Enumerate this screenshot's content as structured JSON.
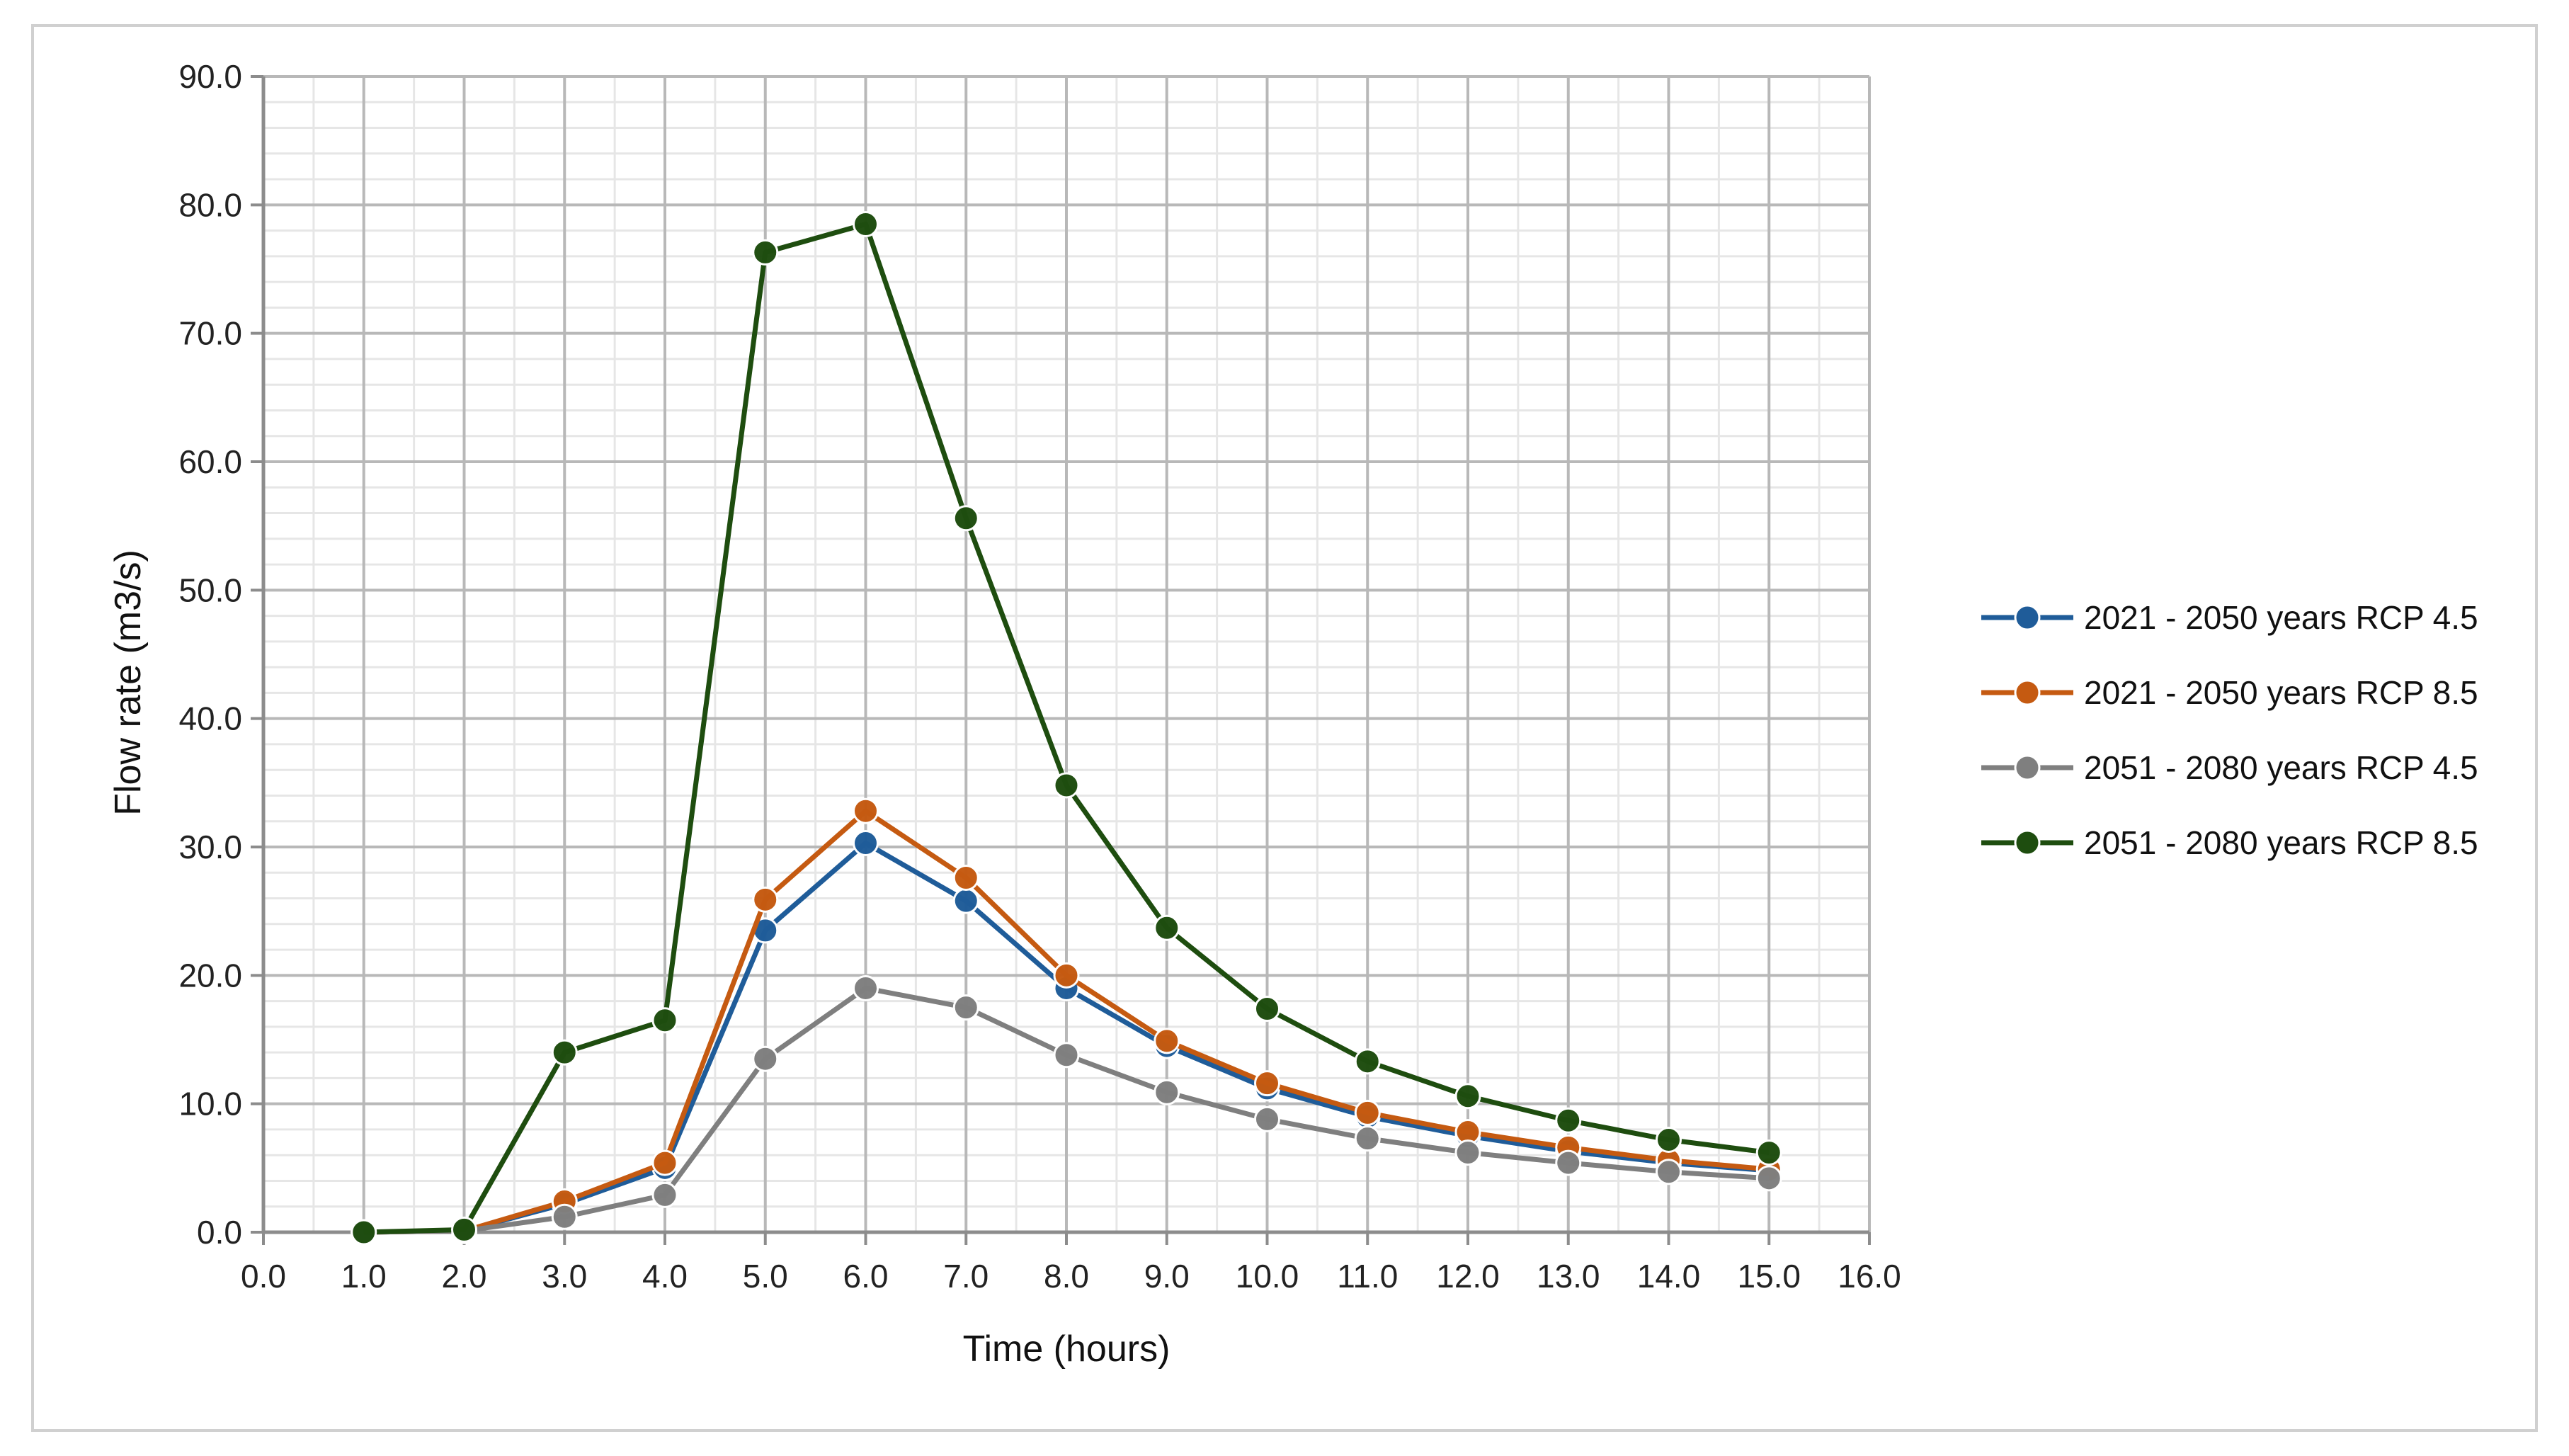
{
  "chart_data": {
    "type": "line",
    "title": "",
    "xlabel": "Time (hours)",
    "ylabel": "Flow rate (m3/s)",
    "xlim": [
      0,
      16
    ],
    "ylim": [
      0,
      90
    ],
    "x_ticks": [
      "0.0",
      "1.0",
      "2.0",
      "3.0",
      "4.0",
      "5.0",
      "6.0",
      "7.0",
      "8.0",
      "9.0",
      "10.0",
      "11.0",
      "12.0",
      "13.0",
      "14.0",
      "15.0",
      "16.0"
    ],
    "y_ticks": [
      "0.0",
      "10.0",
      "20.0",
      "30.0",
      "40.0",
      "50.0",
      "60.0",
      "70.0",
      "80.0",
      "90.0"
    ],
    "grid": true,
    "minor_grid": true,
    "legend_position": "right",
    "x": [
      1,
      2,
      3,
      4,
      5,
      6,
      7,
      8,
      9,
      10,
      11,
      12,
      13,
      14,
      15
    ],
    "series": [
      {
        "name": "2021 - 2050 years RCP 4.5",
        "color": "#1f5c99",
        "values": [
          0,
          0.1,
          2.2,
          5.0,
          23.5,
          30.3,
          25.8,
          19.0,
          14.5,
          11.2,
          9.0,
          7.5,
          6.3,
          5.4,
          4.8
        ]
      },
      {
        "name": "2021 - 2050 years RCP 8.5",
        "color": "#c55a11",
        "values": [
          0,
          0.1,
          2.4,
          5.4,
          25.9,
          32.8,
          27.6,
          20.0,
          14.9,
          11.6,
          9.3,
          7.8,
          6.6,
          5.6,
          4.9
        ]
      },
      {
        "name": "2051 - 2080 years RCP 4.5",
        "color": "#7f7f7f",
        "values": [
          0,
          0.1,
          1.2,
          2.9,
          13.5,
          19.0,
          17.5,
          13.8,
          10.9,
          8.8,
          7.3,
          6.2,
          5.4,
          4.7,
          4.2
        ]
      },
      {
        "name": "2051 - 2080 years RCP 8.5",
        "color": "#1e4d0f",
        "values": [
          0,
          0.2,
          14.0,
          16.5,
          76.3,
          78.5,
          55.6,
          34.8,
          23.7,
          17.4,
          13.3,
          10.6,
          8.7,
          7.2,
          6.2
        ]
      }
    ]
  }
}
